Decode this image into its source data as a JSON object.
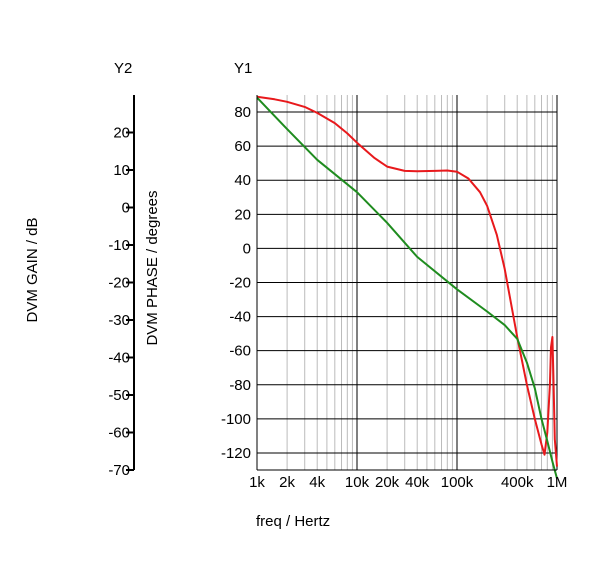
{
  "chart_data": {
    "type": "line",
    "y2_header": "Y2",
    "y1_header": "Y1",
    "xlabel": "freq / Hertz",
    "y2label": "DVM GAIN / dB",
    "y1label": "DVM PHASE / degrees",
    "x_scale": "log",
    "xlim": [
      1000,
      1000000
    ],
    "x_ticks": [
      {
        "value": 1000,
        "label": "1k"
      },
      {
        "value": 2000,
        "label": "2k"
      },
      {
        "value": 4000,
        "label": "4k"
      },
      {
        "value": 10000,
        "label": "10k"
      },
      {
        "value": 20000,
        "label": "20k"
      },
      {
        "value": 40000,
        "label": "40k"
      },
      {
        "value": 100000,
        "label": "100k"
      },
      {
        "value": 400000,
        "label": "400k"
      },
      {
        "value": 1000000,
        "label": "1M"
      }
    ],
    "y1lim": [
      -130,
      90
    ],
    "y1_ticks": [
      80,
      60,
      40,
      20,
      0,
      -20,
      -40,
      -60,
      -80,
      -100,
      -120
    ],
    "y2lim": [
      -70,
      30
    ],
    "y2_ticks": [
      20,
      10,
      0,
      -10,
      -20,
      -30,
      -40,
      -50,
      -60,
      -70
    ],
    "grid": true,
    "series": [
      {
        "color": "#e8191c",
        "axis": "y1",
        "x": [
          1000,
          1500,
          2000,
          3000,
          4000,
          6000,
          8000,
          10000,
          15000,
          20000,
          30000,
          40000,
          60000,
          80000,
          100000,
          130000,
          170000,
          200000,
          250000,
          300000,
          400000,
          500000,
          600000,
          700000,
          750000,
          800000,
          850000,
          870000,
          900000,
          920000,
          950000,
          1000000
        ],
        "y": [
          89,
          87.5,
          86,
          83,
          79.5,
          73.5,
          67.5,
          62,
          53,
          48,
          45.5,
          45.3,
          45.5,
          45.7,
          45,
          41,
          33,
          25,
          8,
          -12,
          -52,
          -80,
          -100,
          -115,
          -121,
          -108,
          -80,
          -58,
          -52,
          -75,
          -112,
          -128
        ]
      },
      {
        "color": "#1f8c1f",
        "axis": "y1",
        "x": [
          1000,
          2000,
          4000,
          10000,
          20000,
          40000,
          100000,
          200000,
          300000,
          400000,
          500000,
          600000,
          700000,
          800000,
          900000,
          1000000
        ],
        "y": [
          88.5,
          70,
          52,
          33,
          15,
          -5,
          -24,
          -37,
          -45,
          -53,
          -67,
          -82,
          -100,
          -113,
          -125,
          -135
        ]
      }
    ]
  }
}
